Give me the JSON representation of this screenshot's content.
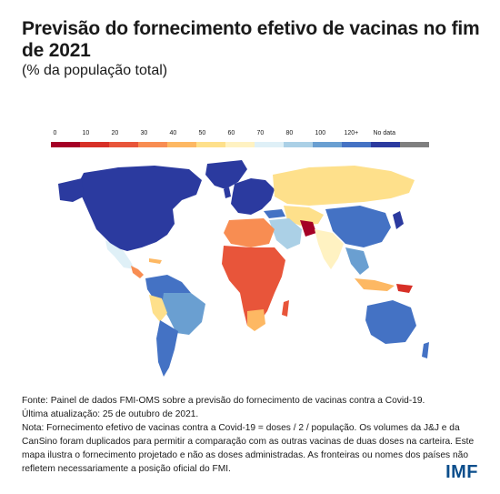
{
  "title": "Previsão do fornecimento efetivo de vacinas no fim de 2021",
  "subtitle": "(% da população total)",
  "legend": {
    "items": [
      {
        "label": "0",
        "color": "#a50026"
      },
      {
        "label": "10",
        "color": "#d73027"
      },
      {
        "label": "20",
        "color": "#e8553a"
      },
      {
        "label": "30",
        "color": "#f88d52"
      },
      {
        "label": "40",
        "color": "#fdb863"
      },
      {
        "label": "50",
        "color": "#fee08b"
      },
      {
        "label": "60",
        "color": "#fff2c2"
      },
      {
        "label": "70",
        "color": "#dff0f7"
      },
      {
        "label": "80",
        "color": "#abd0e6"
      },
      {
        "label": "100",
        "color": "#6a9fd1"
      },
      {
        "label": "120+",
        "color": "#4472c4"
      },
      {
        "label": "No data",
        "color": "#2b3a9f"
      },
      {
        "label": "",
        "color": "#7f7f7f"
      }
    ]
  },
  "notes": {
    "source": "Fonte: Painel de dados FMI-OMS sobre a previsão do fornecimento de vacinas contra a Covid-19.",
    "updated": "Última atualização: 25 de outubro de 2021.",
    "note": "Nota: Fornecimento efetivo de vacinas contra a Covid-19 = doses / 2 / população. Os volumes da J&J e da CanSino foram duplicados para permitir a comparação com as outras vacinas de duas doses na carteira. Este mapa ilustra o fornecimento projetado e não as doses administradas. As fronteiras ou nomes dos países não refletem necessariamente a posição oficial do FMI."
  },
  "logo": "IMF"
}
